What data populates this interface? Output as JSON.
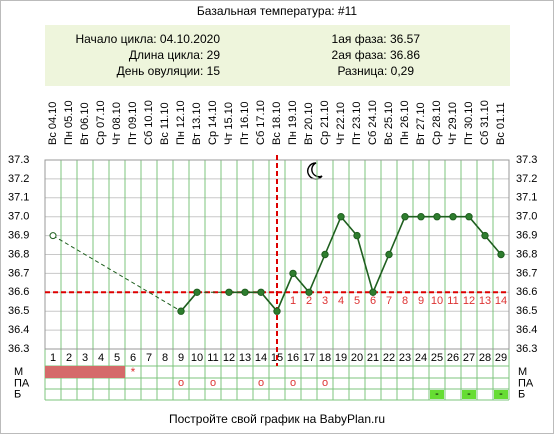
{
  "title": "Базальная температура: #11",
  "info_left": [
    "Начало цикла: 04.10.2020",
    "Длина цикла: 29",
    "День овуляции: 15"
  ],
  "info_right": [
    "1ая фаза: 36.57",
    "2ая фаза: 36.86",
    "Разница: 0,29"
  ],
  "chart_data": {
    "type": "line",
    "x": [
      1,
      2,
      3,
      4,
      5,
      6,
      7,
      8,
      9,
      10,
      11,
      12,
      13,
      14,
      15,
      16,
      17,
      18,
      19,
      20,
      21,
      22,
      23,
      24,
      25,
      26,
      27,
      28,
      29
    ],
    "dates": [
      "Вс 04.10",
      "Пн 05.10",
      "Вт 06.10",
      "Ср 07.10",
      "Чт 08.10",
      "Пт 09.10",
      "Сб 10.10",
      "Вс 11.10",
      "Пн 12.10",
      "Вт 13.10",
      "Ср 14.10",
      "Чт 15.10",
      "Пт 16.10",
      "Сб 17.10",
      "Вс 18.10",
      "Пн 19.10",
      "Вт 20.10",
      "Ср 21.10",
      "Чт 22.10",
      "Пт 23.10",
      "Сб 24.10",
      "Вс 25.10",
      "Пн 26.10",
      "Вт 27.10",
      "Ср 28.10",
      "Чт 29.10",
      "Пт 30.10",
      "Сб 31.10",
      "Вс 01.11"
    ],
    "values": [
      36.9,
      null,
      null,
      null,
      null,
      null,
      null,
      null,
      36.5,
      36.6,
      null,
      36.6,
      36.6,
      36.6,
      36.5,
      36.7,
      36.6,
      36.8,
      37.0,
      36.9,
      36.6,
      36.8,
      37.0,
      37.0,
      37.0,
      37.0,
      37.0,
      36.9,
      36.8
    ],
    "hollow_days": [
      1
    ],
    "color": "#1f5f1f",
    "xlim": [
      0.5,
      29.5
    ],
    "ylim": [
      36.3,
      37.3
    ],
    "yticks": [
      37.3,
      37.2,
      37.1,
      {
        "value": 37.0,
        "label": "37.0"
      },
      36.9,
      36.8,
      36.7,
      36.6,
      36.5,
      36.4,
      36.3
    ],
    "coverline": 36.6,
    "ovulation_day": 15,
    "phase2_labels": [
      1,
      2,
      3,
      4,
      5,
      6,
      7,
      8,
      9,
      10,
      11,
      12,
      13,
      14
    ],
    "row_labels": [
      "М",
      "ПА",
      "Б"
    ],
    "m_days": [
      1,
      2,
      3,
      4,
      5
    ],
    "m_star_day": 6,
    "m_star_symbol": "*",
    "pa_days": [
      9,
      11,
      14,
      16,
      18
    ],
    "pa_symbol": "o",
    "b_days": [
      25,
      27,
      29
    ],
    "b_symbol": "-"
  },
  "footer": "Постройте свой график на BabyPlan.ru"
}
